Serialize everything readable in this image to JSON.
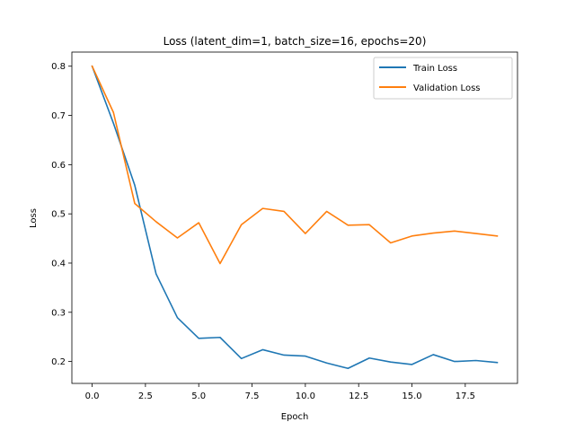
{
  "chart_data": {
    "type": "line",
    "title": "Loss (latent_dim=1, batch_size=16, epochs=20)",
    "xlabel": "Epoch",
    "ylabel": "Loss",
    "x": [
      0,
      1,
      2,
      3,
      4,
      5,
      6,
      7,
      8,
      9,
      10,
      11,
      12,
      13,
      14,
      15,
      16,
      17,
      18,
      19
    ],
    "xlim": [
      -0.95,
      19.95
    ],
    "ylim": [
      0.1555,
      0.8287
    ],
    "xticks": [
      0,
      2.5,
      5,
      7.5,
      10,
      12.5,
      15,
      17.5
    ],
    "xtick_labels": [
      "0.0",
      "2.5",
      "5.0",
      "7.5",
      "10.0",
      "12.5",
      "15.0",
      "17.5"
    ],
    "yticks": [
      0.2,
      0.3,
      0.4,
      0.5,
      0.6,
      0.7,
      0.8
    ],
    "ytick_labels": [
      "0.2",
      "0.3",
      "0.4",
      "0.5",
      "0.6",
      "0.7",
      "0.8"
    ],
    "grid": false,
    "legend_position": "top-right",
    "series": [
      {
        "name": "Train Loss",
        "color": "#1f77b4",
        "values": [
          0.8,
          0.684,
          0.558,
          0.378,
          0.289,
          0.247,
          0.249,
          0.206,
          0.224,
          0.213,
          0.211,
          0.197,
          0.186,
          0.207,
          0.199,
          0.194,
          0.214,
          0.2,
          0.202,
          0.198
        ]
      },
      {
        "name": "Validation Loss",
        "color": "#ff7f0e",
        "values": [
          0.8,
          0.706,
          0.521,
          0.484,
          0.451,
          0.482,
          0.399,
          0.478,
          0.511,
          0.505,
          0.46,
          0.505,
          0.477,
          0.478,
          0.441,
          0.455,
          0.461,
          0.465,
          0.46,
          0.455
        ]
      }
    ]
  }
}
